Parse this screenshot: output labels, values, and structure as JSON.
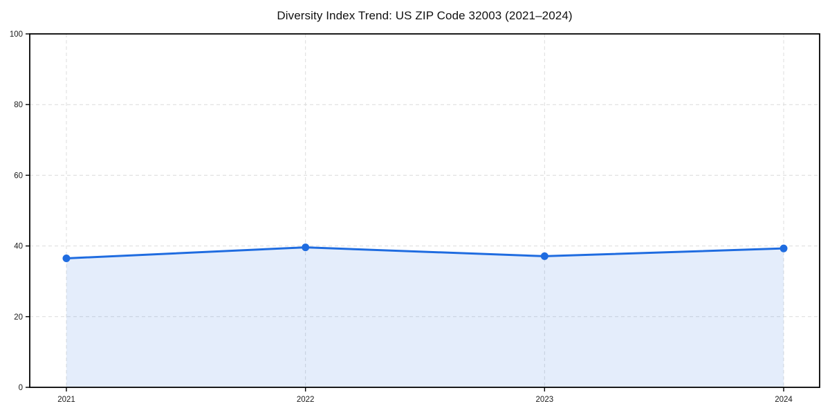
{
  "chart_data": {
    "type": "area",
    "title": "Diversity Index Trend: US ZIP Code 32003 (2021–2024)",
    "series_name": "Diversity Index",
    "x": [
      2021,
      2022,
      2023,
      2024
    ],
    "values": [
      36.5,
      39.6,
      37.1,
      39.3
    ],
    "xlabel": "",
    "ylabel": "",
    "ylim": [
      0,
      100
    ],
    "yticks": [
      0,
      20,
      40,
      60,
      80,
      100
    ],
    "xticks": [
      "2021",
      "2022",
      "2023",
      "2024"
    ],
    "grid": true,
    "grid_style": "dashed",
    "legend_position": "none",
    "colors": {
      "line": "#1f6ce0",
      "marker": "#1f6ce0",
      "fill": "rgba(31,108,224,0.12)",
      "grid": "#dcdcdc",
      "axis": "#000000",
      "background": "#ffffff",
      "text": "#1a1a1a"
    }
  }
}
